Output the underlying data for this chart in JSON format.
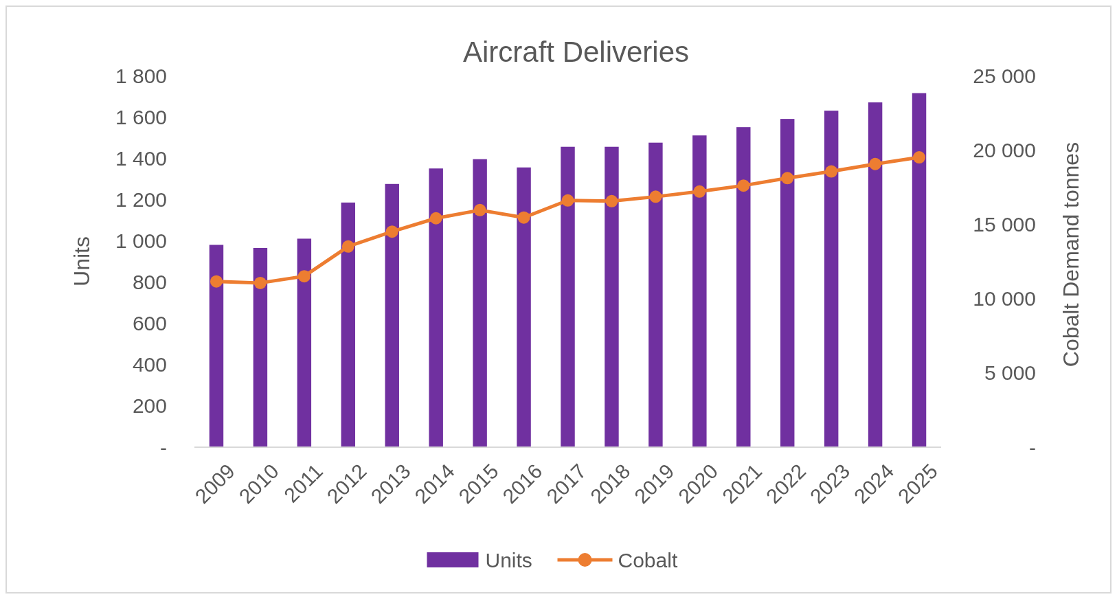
{
  "chart_data": {
    "type": "bar",
    "title": "Aircraft Deliveries",
    "ylabel": "Units",
    "y2label": "Cobalt Demand tonnes",
    "categories": [
      "2009",
      "2010",
      "2011",
      "2012",
      "2013",
      "2014",
      "2015",
      "2016",
      "2017",
      "2018",
      "2019",
      "2020",
      "2021",
      "2022",
      "2023",
      "2024",
      "2025"
    ],
    "series": [
      {
        "name": "Units",
        "color": "#7030a0",
        "values": [
          980,
          965,
          1010,
          1185,
          1275,
          1350,
          1395,
          1355,
          1455,
          1455,
          1475,
          1510,
          1550,
          1590,
          1630,
          1670,
          1715
        ]
      },
      {
        "name": "Cobalt",
        "type": "line",
        "axis": "y2",
        "color": "#ed7d31",
        "marker": "circle",
        "values": [
          11150,
          11050,
          11500,
          13500,
          14500,
          15400,
          15950,
          15450,
          16600,
          16550,
          16850,
          17200,
          17600,
          18100,
          18550,
          19050,
          19500
        ]
      }
    ],
    "ylim": [
      0,
      1800
    ],
    "yticks": [
      {
        "value": 0,
        "label": "-"
      },
      200,
      400,
      600,
      800,
      {
        "value": 1000,
        "label": "1 000"
      },
      {
        "value": 1200,
        "label": "1 200"
      },
      {
        "value": 1400,
        "label": "1 400"
      },
      {
        "value": 1600,
        "label": "1 600"
      },
      {
        "value": 1800,
        "label": "1 800"
      }
    ],
    "y2lim": [
      0,
      25000
    ],
    "y2ticks": [
      {
        "value": 0,
        "label": "-"
      },
      {
        "value": 5000,
        "label": "5 000"
      },
      {
        "value": 10000,
        "label": "10 000"
      },
      {
        "value": 15000,
        "label": "15 000"
      },
      {
        "value": 20000,
        "label": "20 000"
      },
      {
        "value": 25000,
        "label": "25 000"
      }
    ],
    "legend": "bottom",
    "grid": false
  }
}
